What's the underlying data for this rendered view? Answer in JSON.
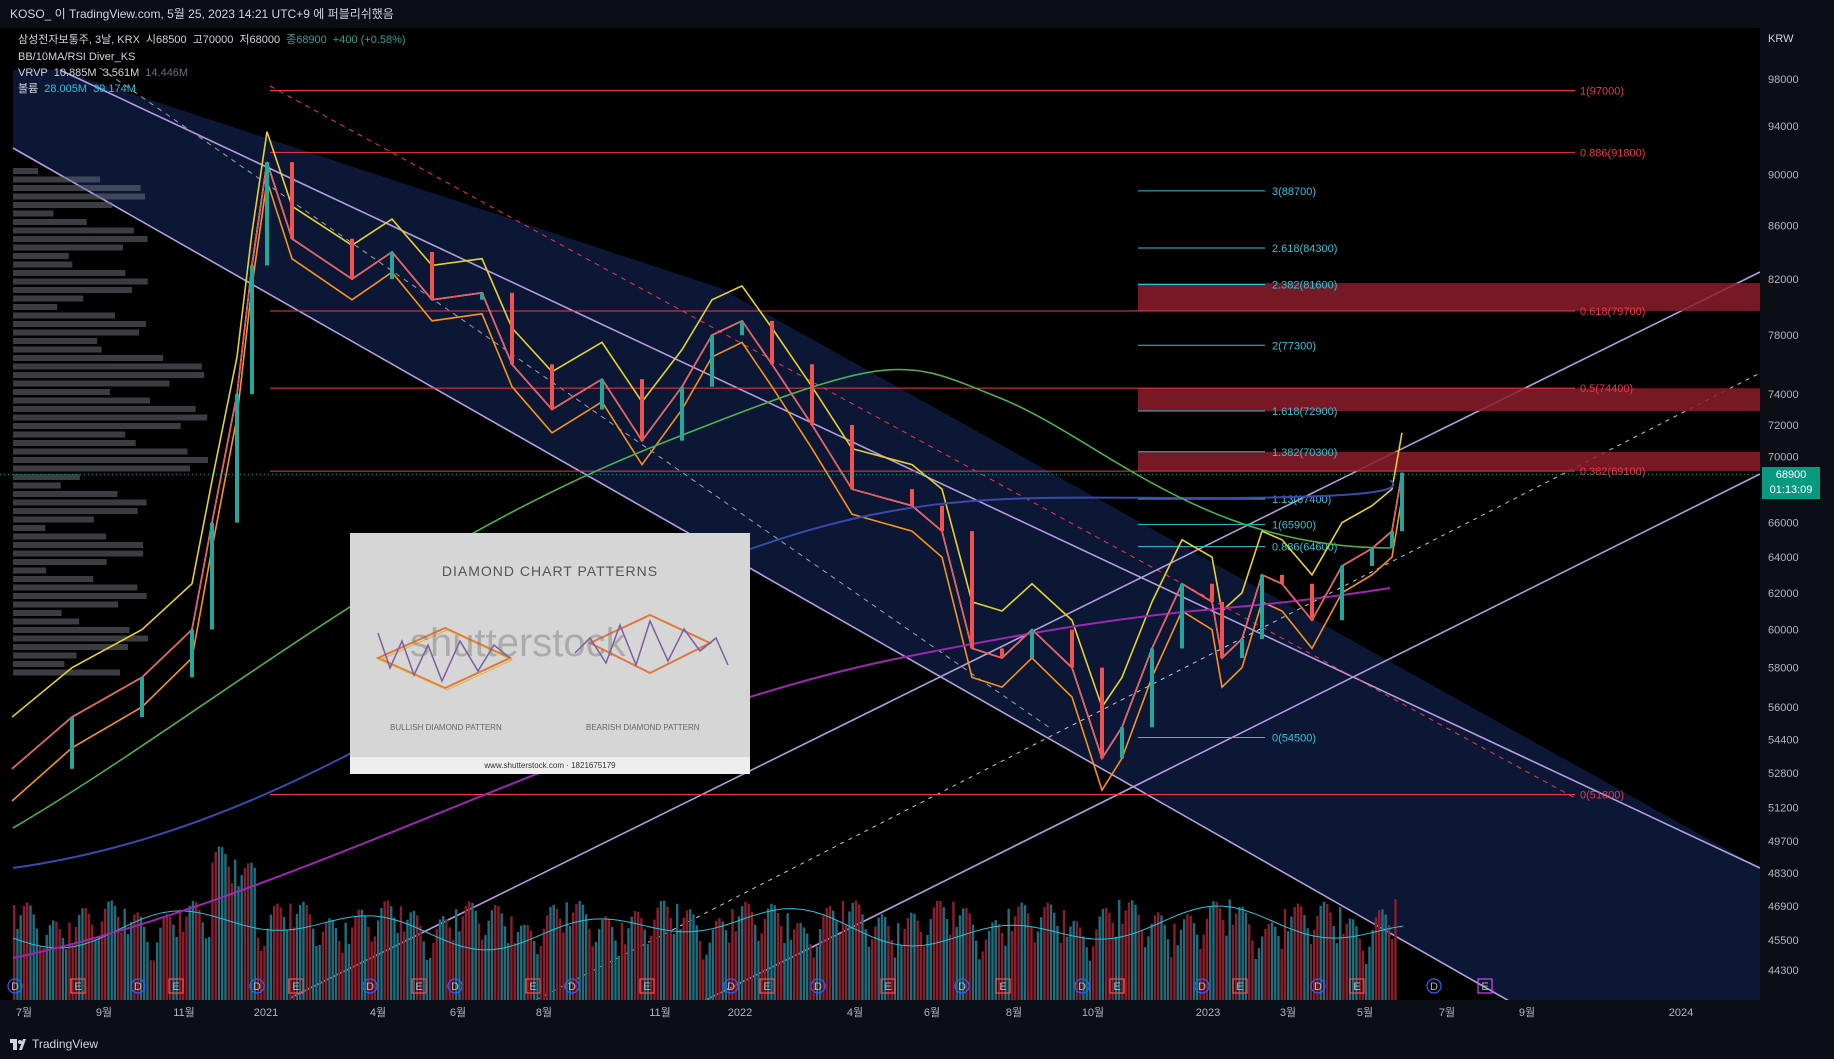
{
  "header": {
    "text": "KOSO_ 이 TradingView.com, 5월 25, 2023 14:21 UTC+9 에 퍼블리쉬했음"
  },
  "legend": {
    "symbol": "삼성전자보통주, 3날, KRX",
    "open": "시68500",
    "high": "고70000",
    "low": "저68000",
    "close": "종68900",
    "change": "+400 (+0.58%)",
    "indicator1": "BB/10MA/RSI Diver_KS",
    "vrvp_label": "VRVP",
    "vrvp_v1": "10.885M",
    "vrvp_v2": "3.561M",
    "vrvp_v3": "14.446M",
    "vol_label": "볼륨",
    "vol_v1": "28.005M",
    "vol_v2": "39.174M"
  },
  "currency": "KRW",
  "last_price": {
    "price": "68900",
    "countdown": "01:13:09"
  },
  "footer": {
    "brand": "TradingView"
  },
  "image_overlay": {
    "title": "DIAMOND CHART PATTERNS",
    "watermark": "shutterstock",
    "bullish": "BULLISH DIAMOND PATTERN",
    "bearish": "BEARISH DIAMOND PATTERN",
    "footer": "www.shutterstock.com · 1821675179"
  },
  "colors": {
    "up": "#26a69a",
    "down": "#ef5350",
    "fib_red": "#f23645",
    "fib_cyan": "#26c6da",
    "channel": "#b39ddb"
  },
  "chart_data": {
    "type": "line",
    "scale": "log",
    "price_ticks": [
      98000,
      94000,
      90000,
      86000,
      82000,
      78000,
      74000,
      72000,
      70000,
      66000,
      64000,
      62000,
      60000,
      58000,
      56000,
      54400,
      52800,
      51200,
      49700,
      48300,
      46900,
      45500,
      44300
    ],
    "time_labels": [
      "7월",
      "9월",
      "11월",
      "2021",
      "4월",
      "6월",
      "8월",
      "11월",
      "2022",
      "4월",
      "6월",
      "8월",
      "10월",
      "2023",
      "3월",
      "5월",
      "7월",
      "9월",
      "2024"
    ],
    "price_path": [
      {
        "t": 0,
        "p": 53000
      },
      {
        "t": 60,
        "p": 55500
      },
      {
        "t": 130,
        "p": 57500
      },
      {
        "t": 180,
        "p": 60000
      },
      {
        "t": 200,
        "p": 66000
      },
      {
        "t": 225,
        "p": 74000
      },
      {
        "t": 240,
        "p": 83000
      },
      {
        "t": 255,
        "p": 91000
      },
      {
        "t": 280,
        "p": 85000
      },
      {
        "t": 340,
        "p": 82000
      },
      {
        "t": 380,
        "p": 84000
      },
      {
        "t": 420,
        "p": 80500
      },
      {
        "t": 470,
        "p": 81000
      },
      {
        "t": 500,
        "p": 76000
      },
      {
        "t": 540,
        "p": 73000
      },
      {
        "t": 590,
        "p": 75000
      },
      {
        "t": 630,
        "p": 71000
      },
      {
        "t": 670,
        "p": 74500
      },
      {
        "t": 700,
        "p": 78000
      },
      {
        "t": 730,
        "p": 79000
      },
      {
        "t": 760,
        "p": 76000
      },
      {
        "t": 800,
        "p": 72000
      },
      {
        "t": 840,
        "p": 68000
      },
      {
        "t": 900,
        "p": 67000
      },
      {
        "t": 930,
        "p": 65500
      },
      {
        "t": 960,
        "p": 59000
      },
      {
        "t": 990,
        "p": 58500
      },
      {
        "t": 1020,
        "p": 60000
      },
      {
        "t": 1060,
        "p": 58000
      },
      {
        "t": 1090,
        "p": 53500
      },
      {
        "t": 1110,
        "p": 55000
      },
      {
        "t": 1140,
        "p": 59000
      },
      {
        "t": 1170,
        "p": 62500
      },
      {
        "t": 1200,
        "p": 61500
      },
      {
        "t": 1210,
        "p": 58500
      },
      {
        "t": 1230,
        "p": 59500
      },
      {
        "t": 1250,
        "p": 63000
      },
      {
        "t": 1270,
        "p": 62500
      },
      {
        "t": 1300,
        "p": 60500
      },
      {
        "t": 1330,
        "p": 63500
      },
      {
        "t": 1360,
        "p": 64500
      },
      {
        "t": 1380,
        "p": 65500
      },
      {
        "t": 1390,
        "p": 69000
      }
    ],
    "fib_left": [
      {
        "label": "1(97000)",
        "price": 97000
      },
      {
        "label": "0.886(91800)",
        "price": 91800
      },
      {
        "label": "0.618(79700)",
        "price": 79700
      },
      {
        "label": "0.5(74400)",
        "price": 74400
      },
      {
        "label": "0.382(69100)",
        "price": 69100
      },
      {
        "label": "0(51800)",
        "price": 51800
      }
    ],
    "fib_right": [
      {
        "label": "3(88700)",
        "price": 88700
      },
      {
        "label": "2.618(84300)",
        "price": 84300
      },
      {
        "label": "2.382(81600)",
        "price": 81600
      },
      {
        "label": "2(77300)",
        "price": 77300
      },
      {
        "label": "1.618(72900)",
        "price": 72900
      },
      {
        "label": "1.382(70300)",
        "price": 70300
      },
      {
        "label": "1.13(67400)",
        "price": 67400
      },
      {
        "label": "1(65900)",
        "price": 65900
      },
      {
        "label": "0.886(64600)",
        "price": 64600
      },
      {
        "label": "0(54500)",
        "price": 54500
      }
    ],
    "red_zones": [
      [
        79700,
        81700
      ],
      [
        72900,
        74400
      ],
      [
        69100,
        70300
      ]
    ]
  }
}
